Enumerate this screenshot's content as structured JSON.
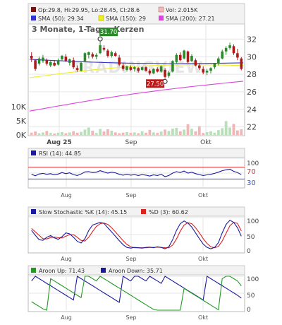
{
  "main_chart": {
    "title": "3 Monate, 1-Tages-Kerzen",
    "watermark": "TRADINGVIEW",
    "legend": [
      {
        "label": "Op:29.8, Hi:29.95, Lo:28.45, Cl:28.6",
        "color": "#7a1212"
      },
      {
        "label": "Vol: 2.015K",
        "color": "#f4b6b6"
      },
      {
        "label": "SMA (50): 29.34",
        "color": "#3333cc"
      },
      {
        "label": "SMA (150): 29",
        "color": "#eeee22"
      },
      {
        "label": "SMA (200): 27.21",
        "color": "#dd44dd"
      }
    ],
    "price_ticks": [
      "32",
      "30",
      "28",
      "26",
      "24",
      "22"
    ],
    "volume_ticks": [
      "10K",
      "5K",
      "0K"
    ],
    "x_labels": [
      "Aug 25",
      "Sep",
      "Okt"
    ],
    "high_marker": "31.70",
    "low_marker": "27.50",
    "up_color": "#2a8a2a",
    "down_color": "#b01818"
  },
  "rsi_panel": {
    "legend": "RSI (14): 44.85",
    "legend_color": "#1a1aa0",
    "ticks": [
      "100",
      "70",
      "30"
    ],
    "x_labels": [
      "Aug",
      "Sep",
      "Okt"
    ],
    "overbought_color": "#e03030",
    "oversold_color": "#3050d0"
  },
  "stoch_panel": {
    "legend_k": "Slow Stochastic %K (14): 45.15",
    "legend_d": "%D (3): 60.62",
    "k_color": "#1a1aa0",
    "d_color": "#dd2222",
    "ticks": [
      "100",
      "50",
      "0"
    ],
    "x_labels": [
      "Aug",
      "Sep",
      "Okt"
    ]
  },
  "aroon_panel": {
    "legend_up": "Aroon Up: 71.43",
    "legend_down": "Aroon Down: 35.71",
    "up_color": "#229922",
    "down_color": "#1a1aa0",
    "ticks": [
      "100",
      "50",
      "0"
    ],
    "x_labels": [
      "Aug",
      "Sep",
      "Okt"
    ]
  },
  "chart_data": [
    {
      "type": "candlestick",
      "title": "3 Monate, 1-Tages-Kerzen",
      "ylim": [
        21,
        33
      ],
      "candles": [
        {
          "o": 30.1,
          "h": 30.5,
          "l": 29.4,
          "c": 29.8
        },
        {
          "o": 29.6,
          "h": 29.7,
          "l": 28.4,
          "c": 28.6
        },
        {
          "o": 29.2,
          "h": 30.0,
          "l": 29.0,
          "c": 29.8
        },
        {
          "o": 29.5,
          "h": 30.2,
          "l": 29.3,
          "c": 29.9
        },
        {
          "o": 29.6,
          "h": 29.8,
          "l": 29.0,
          "c": 29.2
        },
        {
          "o": 29.0,
          "h": 29.5,
          "l": 28.8,
          "c": 29.4
        },
        {
          "o": 29.3,
          "h": 29.6,
          "l": 28.9,
          "c": 29.0
        },
        {
          "o": 29.1,
          "h": 29.8,
          "l": 29.0,
          "c": 29.6
        },
        {
          "o": 29.7,
          "h": 30.2,
          "l": 29.5,
          "c": 30.1
        },
        {
          "o": 30.0,
          "h": 30.3,
          "l": 29.4,
          "c": 29.5
        },
        {
          "o": 29.3,
          "h": 29.8,
          "l": 29.0,
          "c": 29.7
        },
        {
          "o": 29.6,
          "h": 29.9,
          "l": 28.6,
          "c": 28.8
        },
        {
          "o": 28.7,
          "h": 29.0,
          "l": 28.3,
          "c": 28.5
        },
        {
          "o": 28.4,
          "h": 29.4,
          "l": 28.3,
          "c": 29.3
        },
        {
          "o": 29.5,
          "h": 30.5,
          "l": 29.4,
          "c": 30.4
        },
        {
          "o": 30.2,
          "h": 30.6,
          "l": 29.8,
          "c": 30.5
        },
        {
          "o": 30.3,
          "h": 30.5,
          "l": 29.8,
          "c": 30.0
        },
        {
          "o": 30.0,
          "h": 30.4,
          "l": 29.7,
          "c": 30.2
        },
        {
          "o": 30.4,
          "h": 31.7,
          "l": 30.3,
          "c": 31.3
        },
        {
          "o": 31.0,
          "h": 31.3,
          "l": 30.6,
          "c": 30.8
        },
        {
          "o": 30.7,
          "h": 30.9,
          "l": 29.9,
          "c": 30.1
        },
        {
          "o": 30.1,
          "h": 30.7,
          "l": 29.9,
          "c": 30.5
        },
        {
          "o": 30.4,
          "h": 30.6,
          "l": 30.0,
          "c": 30.1
        },
        {
          "o": 29.9,
          "h": 30.2,
          "l": 28.9,
          "c": 29.1
        },
        {
          "o": 29.0,
          "h": 29.3,
          "l": 28.4,
          "c": 28.6
        },
        {
          "o": 28.5,
          "h": 29.0,
          "l": 28.3,
          "c": 28.9
        },
        {
          "o": 28.8,
          "h": 29.0,
          "l": 28.4,
          "c": 28.5
        },
        {
          "o": 28.6,
          "h": 28.9,
          "l": 28.3,
          "c": 28.8
        },
        {
          "o": 28.7,
          "h": 28.8,
          "l": 28.2,
          "c": 28.4
        },
        {
          "o": 28.5,
          "h": 28.9,
          "l": 28.4,
          "c": 28.8
        },
        {
          "o": 28.8,
          "h": 28.9,
          "l": 28.3,
          "c": 28.4
        },
        {
          "o": 28.4,
          "h": 28.6,
          "l": 27.9,
          "c": 28.1
        },
        {
          "o": 28.1,
          "h": 28.7,
          "l": 28.0,
          "c": 28.6
        },
        {
          "o": 28.6,
          "h": 28.8,
          "l": 28.2,
          "c": 28.3
        },
        {
          "o": 28.3,
          "h": 29.0,
          "l": 28.2,
          "c": 28.9
        },
        {
          "o": 28.5,
          "h": 28.7,
          "l": 27.5,
          "c": 27.7
        },
        {
          "o": 27.8,
          "h": 28.4,
          "l": 27.6,
          "c": 28.2
        },
        {
          "o": 28.3,
          "h": 29.6,
          "l": 28.2,
          "c": 29.5
        },
        {
          "o": 29.4,
          "h": 30.4,
          "l": 29.2,
          "c": 30.2
        },
        {
          "o": 30.2,
          "h": 30.5,
          "l": 29.5,
          "c": 29.6
        },
        {
          "o": 29.8,
          "h": 30.8,
          "l": 29.7,
          "c": 30.7
        },
        {
          "o": 30.6,
          "h": 30.7,
          "l": 29.3,
          "c": 29.4
        },
        {
          "o": 29.5,
          "h": 30.3,
          "l": 29.4,
          "c": 30.1
        },
        {
          "o": 29.6,
          "h": 29.8,
          "l": 28.9,
          "c": 29.0
        },
        {
          "o": 29.0,
          "h": 29.2,
          "l": 28.5,
          "c": 28.7
        },
        {
          "o": 28.6,
          "h": 28.9,
          "l": 28.0,
          "c": 28.2
        },
        {
          "o": 28.2,
          "h": 28.6,
          "l": 27.9,
          "c": 28.4
        },
        {
          "o": 28.4,
          "h": 28.8,
          "l": 28.1,
          "c": 28.7
        },
        {
          "o": 28.8,
          "h": 29.3,
          "l": 28.6,
          "c": 29.2
        },
        {
          "o": 29.2,
          "h": 30.0,
          "l": 29.0,
          "c": 29.8
        },
        {
          "o": 29.8,
          "h": 30.8,
          "l": 29.7,
          "c": 30.6
        },
        {
          "o": 30.6,
          "h": 31.2,
          "l": 30.2,
          "c": 31.0
        },
        {
          "o": 31.0,
          "h": 31.6,
          "l": 30.8,
          "c": 31.3
        },
        {
          "o": 31.2,
          "h": 31.4,
          "l": 30.2,
          "c": 30.4
        },
        {
          "o": 30.4,
          "h": 30.9,
          "l": 29.6,
          "c": 29.9
        },
        {
          "o": 29.8,
          "h": 29.95,
          "l": 28.45,
          "c": 28.6
        }
      ],
      "volume_ylim": [
        0,
        12000
      ],
      "volume": [
        800,
        1200,
        600,
        900,
        1400,
        700,
        500,
        800,
        1000,
        600,
        900,
        1300,
        800,
        1100,
        1900,
        2600,
        1500,
        700,
        2100,
        1200,
        2000,
        1500,
        900,
        600,
        800,
        1000,
        700,
        900,
        600,
        1300,
        800,
        1800,
        900,
        700,
        1200,
        1900,
        1400,
        2200,
        2500,
        1300,
        1900,
        3800,
        2200,
        1300,
        3100,
        700,
        1000,
        1300,
        800,
        1700,
        2400,
        4900,
        2600,
        3900,
        1600,
        2015
      ],
      "sma50_range": [
        29.7,
        29.3
      ],
      "sma150_range": [
        27.6,
        29.0
      ],
      "sma200_range": [
        23.8,
        27.21
      ]
    },
    {
      "type": "line",
      "title": "RSI (14): 44.85",
      "ylim": [
        0,
        100
      ],
      "reference_lines": [
        70,
        30
      ],
      "series": [
        {
          "name": "RSI (14)",
          "values": [
            46,
            41,
            47,
            49,
            46,
            48,
            44,
            47,
            52,
            48,
            51,
            45,
            42,
            47,
            54,
            55,
            52,
            53,
            58,
            54,
            50,
            53,
            51,
            46,
            43,
            46,
            43,
            45,
            42,
            45,
            43,
            40,
            44,
            42,
            46,
            38,
            42,
            50,
            55,
            52,
            57,
            50,
            53,
            48,
            45,
            42,
            44,
            46,
            49,
            53,
            58,
            61,
            63,
            56,
            52,
            44.85
          ]
        }
      ]
    },
    {
      "type": "line",
      "title": "Slow Stochastic",
      "ylim": [
        0,
        100
      ],
      "series": [
        {
          "name": "Slow Stochastic %K (14)",
          "values": [
            62,
            48,
            35,
            33,
            42,
            47,
            40,
            36,
            44,
            55,
            52,
            42,
            30,
            25,
            38,
            62,
            78,
            82,
            86,
            83,
            70,
            58,
            45,
            32,
            20,
            12,
            10,
            12,
            11,
            10,
            12,
            13,
            11,
            14,
            12,
            8,
            14,
            35,
            62,
            82,
            90,
            84,
            72,
            55,
            38,
            22,
            12,
            8,
            12,
            26,
            55,
            80,
            92,
            86,
            70,
            45.15
          ]
        },
        {
          "name": "%D (3)",
          "values": [
            68,
            58,
            48,
            38,
            37,
            41,
            43,
            41,
            40,
            45,
            50,
            50,
            42,
            33,
            31,
            42,
            59,
            74,
            82,
            84,
            80,
            70,
            58,
            45,
            32,
            21,
            14,
            11,
            11,
            11,
            11,
            12,
            12,
            13,
            12,
            11,
            11,
            19,
            37,
            60,
            78,
            85,
            82,
            70,
            55,
            38,
            24,
            14,
            11,
            15,
            31,
            54,
            76,
            86,
            83,
            60.62
          ]
        }
      ]
    },
    {
      "type": "line",
      "title": "Aroon",
      "ylim": [
        0,
        100
      ],
      "series": [
        {
          "name": "Aroon Up",
          "values": [
            25,
            18,
            11,
            4,
            0,
            93,
            86,
            79,
            72,
            65,
            58,
            51,
            44,
            37,
            100,
            100,
            93,
            86,
            100,
            93,
            86,
            79,
            72,
            65,
            58,
            51,
            44,
            37,
            30,
            23,
            16,
            9,
            2,
            0,
            0,
            0,
            0,
            0,
            0,
            0,
            64,
            57,
            50,
            43,
            36,
            29,
            22,
            15,
            8,
            1,
            93,
            100,
            100,
            93,
            86,
            71.43
          ]
        },
        {
          "name": "Aroon Down",
          "values": [
            86,
            100,
            93,
            86,
            79,
            72,
            65,
            58,
            51,
            44,
            37,
            30,
            100,
            93,
            86,
            79,
            72,
            65,
            58,
            51,
            44,
            37,
            30,
            23,
            100,
            93,
            86,
            100,
            100,
            93,
            86,
            100,
            93,
            86,
            79,
            100,
            93,
            86,
            79,
            72,
            65,
            58,
            51,
            44,
            37,
            30,
            100,
            93,
            86,
            79,
            72,
            65,
            58,
            51,
            44,
            35.71
          ]
        }
      ]
    }
  ]
}
